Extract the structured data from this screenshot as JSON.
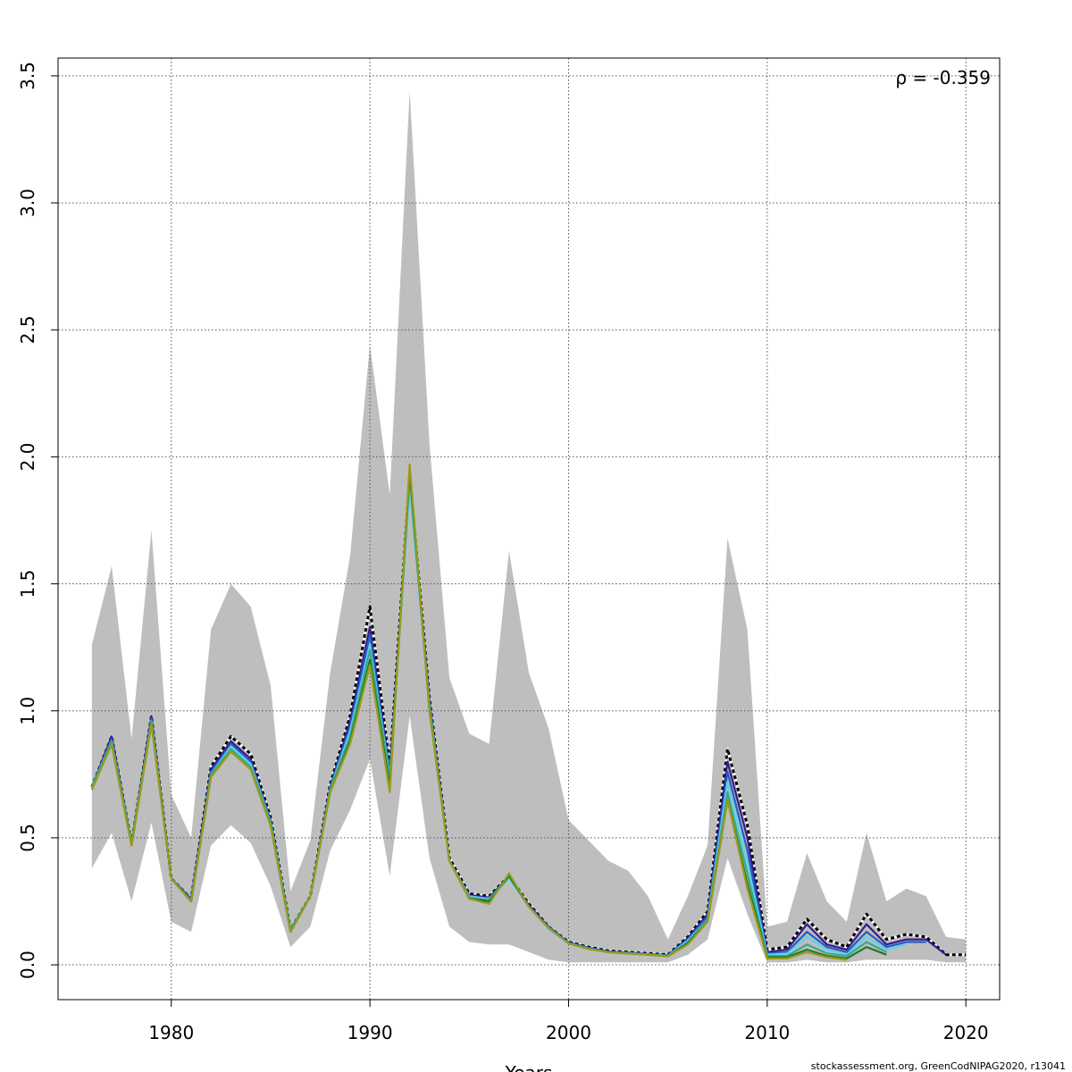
{
  "chart_data": {
    "type": "line",
    "title": "",
    "xlabel": "Years",
    "ylabel": "",
    "xlim": [
      1974.3,
      2021.7
    ],
    "ylim": [
      -0.137,
      3.57
    ],
    "xticks": [
      1980,
      1990,
      2000,
      2010,
      2020
    ],
    "yticks": [
      0.0,
      0.5,
      1.0,
      1.5,
      2.0,
      2.5,
      3.0,
      3.5
    ],
    "ytick_labels": [
      "0.0",
      "0.5",
      "1.0",
      "1.5",
      "2.0",
      "2.5",
      "3.0",
      "3.5"
    ],
    "grid": true,
    "annotation": "ρ = -0.359",
    "footer": "stockassessment.org, GreenCodNIPAG2020, r13041",
    "band_color": "#bebebe",
    "band": {
      "x": [
        1976,
        1977,
        1978,
        1979,
        1980,
        1981,
        1982,
        1983,
        1984,
        1985,
        1986,
        1987,
        1988,
        1989,
        1990,
        1991,
        1992,
        1993,
        1994,
        1995,
        1996,
        1997,
        1998,
        1999,
        2000,
        2001,
        2002,
        2003,
        2004,
        2005,
        2006,
        2007,
        2008,
        2009,
        2010,
        2011,
        2012,
        2013,
        2014,
        2015,
        2016,
        2017,
        2018,
        2019,
        2020
      ],
      "upper": [
        1.26,
        1.57,
        0.89,
        1.71,
        0.67,
        0.5,
        1.32,
        1.5,
        1.41,
        1.1,
        0.29,
        0.49,
        1.15,
        1.61,
        2.44,
        1.85,
        3.44,
        2.05,
        1.13,
        0.91,
        0.87,
        1.63,
        1.15,
        0.93,
        0.57,
        0.49,
        0.41,
        0.37,
        0.27,
        0.1,
        0.27,
        0.47,
        1.68,
        1.32,
        0.15,
        0.17,
        0.44,
        0.25,
        0.17,
        0.52,
        0.25,
        0.3,
        0.27,
        0.11,
        0.1
      ],
      "lower": [
        0.38,
        0.52,
        0.25,
        0.56,
        0.17,
        0.13,
        0.47,
        0.55,
        0.48,
        0.31,
        0.07,
        0.15,
        0.45,
        0.61,
        0.81,
        0.35,
        0.98,
        0.42,
        0.15,
        0.09,
        0.08,
        0.08,
        0.05,
        0.02,
        0.01,
        0.01,
        0.01,
        0.01,
        0.01,
        0.01,
        0.04,
        0.1,
        0.42,
        0.2,
        0.01,
        0.01,
        0.02,
        0.01,
        0.01,
        0.02,
        0.02,
        0.02,
        0.02,
        0.01,
        0.01
      ]
    },
    "series": [
      {
        "color": "#000000",
        "dashed": true,
        "x": [
          1976,
          1977,
          1978,
          1979,
          1980,
          1981,
          1982,
          1983,
          1984,
          1985,
          1986,
          1987,
          1988,
          1989,
          1990,
          1991,
          1992,
          1993,
          1994,
          1995,
          1996,
          1997,
          1998,
          1999,
          2000,
          2001,
          2002,
          2003,
          2004,
          2005,
          2006,
          2007,
          2008,
          2009,
          2010,
          2011,
          2012,
          2013,
          2014,
          2015,
          2016,
          2017,
          2018,
          2019,
          2020
        ],
        "values": [
          0.7,
          0.9,
          0.48,
          0.98,
          0.34,
          0.26,
          0.78,
          0.9,
          0.83,
          0.58,
          0.14,
          0.27,
          0.71,
          0.98,
          1.41,
          0.78,
          1.93,
          1.05,
          0.42,
          0.28,
          0.27,
          0.35,
          0.24,
          0.15,
          0.09,
          0.07,
          0.055,
          0.05,
          0.045,
          0.04,
          0.11,
          0.21,
          0.85,
          0.55,
          0.06,
          0.07,
          0.18,
          0.1,
          0.07,
          0.2,
          0.1,
          0.12,
          0.11,
          0.04,
          0.04
        ]
      },
      {
        "color": "#3b1a8c",
        "dashed": false,
        "x": [
          1976,
          1977,
          1978,
          1979,
          1980,
          1981,
          1982,
          1983,
          1984,
          1985,
          1986,
          1987,
          1988,
          1989,
          1990,
          1991,
          1992,
          1993,
          1994,
          1995,
          1996,
          1997,
          1998,
          1999,
          2000,
          2001,
          2002,
          2003,
          2004,
          2005,
          2006,
          2007,
          2008,
          2009,
          2010,
          2011,
          2012,
          2013,
          2014,
          2015,
          2016,
          2017,
          2018,
          2019
        ],
        "values": [
          0.7,
          0.9,
          0.48,
          0.98,
          0.34,
          0.26,
          0.77,
          0.88,
          0.81,
          0.57,
          0.14,
          0.27,
          0.7,
          0.96,
          1.33,
          0.76,
          1.92,
          1.04,
          0.41,
          0.275,
          0.265,
          0.35,
          0.235,
          0.15,
          0.088,
          0.068,
          0.053,
          0.048,
          0.043,
          0.038,
          0.105,
          0.2,
          0.8,
          0.5,
          0.05,
          0.06,
          0.16,
          0.08,
          0.06,
          0.16,
          0.08,
          0.1,
          0.1,
          0.04
        ]
      },
      {
        "color": "#1f5fc8",
        "dashed": false,
        "x": [
          1976,
          1977,
          1978,
          1979,
          1980,
          1981,
          1982,
          1983,
          1984,
          1985,
          1986,
          1987,
          1988,
          1989,
          1990,
          1991,
          1992,
          1993,
          1994,
          1995,
          1996,
          1997,
          1998,
          1999,
          2000,
          2001,
          2002,
          2003,
          2004,
          2005,
          2006,
          2007,
          2008,
          2009,
          2010,
          2011,
          2012,
          2013,
          2014,
          2015,
          2016,
          2017,
          2018
        ],
        "values": [
          0.7,
          0.89,
          0.48,
          0.97,
          0.34,
          0.26,
          0.76,
          0.87,
          0.8,
          0.57,
          0.14,
          0.27,
          0.7,
          0.94,
          1.3,
          0.75,
          1.9,
          1.03,
          0.41,
          0.27,
          0.26,
          0.35,
          0.23,
          0.15,
          0.087,
          0.067,
          0.052,
          0.047,
          0.042,
          0.037,
          0.1,
          0.19,
          0.76,
          0.45,
          0.045,
          0.05,
          0.13,
          0.07,
          0.05,
          0.13,
          0.07,
          0.09,
          0.09
        ]
      },
      {
        "color": "#5fd3e6",
        "dashed": false,
        "x": [
          1976,
          1977,
          1978,
          1979,
          1980,
          1981,
          1982,
          1983,
          1984,
          1985,
          1986,
          1987,
          1988,
          1989,
          1990,
          1991,
          1992,
          1993,
          1994,
          1995,
          1996,
          1997,
          1998,
          1999,
          2000,
          2001,
          2002,
          2003,
          2004,
          2005,
          2006,
          2007,
          2008,
          2009,
          2010,
          2011,
          2012,
          2013,
          2014,
          2015,
          2016,
          2017
        ],
        "values": [
          0.7,
          0.88,
          0.48,
          0.96,
          0.34,
          0.25,
          0.75,
          0.86,
          0.79,
          0.56,
          0.14,
          0.27,
          0.69,
          0.92,
          1.26,
          0.74,
          1.88,
          1.02,
          0.41,
          0.27,
          0.26,
          0.34,
          0.23,
          0.14,
          0.085,
          0.065,
          0.05,
          0.046,
          0.041,
          0.036,
          0.095,
          0.18,
          0.72,
          0.4,
          0.04,
          0.045,
          0.11,
          0.06,
          0.04,
          0.11,
          0.06,
          0.08
        ]
      },
      {
        "color": "#3aa88a",
        "dashed": false,
        "x": [
          1976,
          1977,
          1978,
          1979,
          1980,
          1981,
          1982,
          1983,
          1984,
          1985,
          1986,
          1987,
          1988,
          1989,
          1990,
          1991,
          1992,
          1993,
          1994,
          1995,
          1996,
          1997,
          1998,
          1999,
          2000,
          2001,
          2002,
          2003,
          2004,
          2005,
          2006,
          2007,
          2008,
          2009,
          2010,
          2011,
          2012,
          2013,
          2014,
          2015,
          2016
        ],
        "values": [
          0.7,
          0.88,
          0.48,
          0.96,
          0.34,
          0.25,
          0.75,
          0.85,
          0.78,
          0.56,
          0.14,
          0.27,
          0.69,
          0.9,
          1.24,
          0.73,
          1.92,
          1.02,
          0.41,
          0.265,
          0.255,
          0.35,
          0.23,
          0.145,
          0.085,
          0.064,
          0.05,
          0.045,
          0.04,
          0.035,
          0.09,
          0.18,
          0.68,
          0.36,
          0.035,
          0.035,
          0.08,
          0.045,
          0.035,
          0.09,
          0.05
        ]
      },
      {
        "color": "#1e7a24",
        "dashed": false,
        "x": [
          1976,
          1977,
          1978,
          1979,
          1980,
          1981,
          1982,
          1983,
          1984,
          1985,
          1986,
          1987,
          1988,
          1989,
          1990,
          1991,
          1992,
          1993,
          1994,
          1995,
          1996,
          1997,
          1998,
          1999,
          2000,
          2001,
          2002,
          2003,
          2004,
          2005,
          2006,
          2007,
          2008,
          2009,
          2010,
          2011,
          2012,
          2013,
          2014,
          2015,
          2016
        ],
        "values": [
          0.69,
          0.87,
          0.47,
          0.95,
          0.34,
          0.25,
          0.74,
          0.84,
          0.77,
          0.55,
          0.13,
          0.27,
          0.68,
          0.88,
          1.2,
          0.7,
          1.95,
          1.0,
          0.41,
          0.26,
          0.25,
          0.35,
          0.23,
          0.145,
          0.085,
          0.063,
          0.05,
          0.045,
          0.04,
          0.034,
          0.085,
          0.17,
          0.65,
          0.32,
          0.03,
          0.03,
          0.06,
          0.035,
          0.025,
          0.07,
          0.04
        ]
      },
      {
        "color": "#9a9a1c",
        "dashed": false,
        "x": [
          1976,
          1977,
          1978,
          1979,
          1980,
          1981,
          1982,
          1983,
          1984,
          1985,
          1986,
          1987,
          1988,
          1989,
          1990,
          1991,
          1992,
          1993,
          1994,
          1995,
          1996,
          1997,
          1998,
          1999,
          2000,
          2001,
          2002,
          2003,
          2004,
          2005,
          2006,
          2007,
          2008,
          2009,
          2010,
          2011,
          2012,
          2013,
          2014
        ],
        "values": [
          0.69,
          0.87,
          0.47,
          0.95,
          0.34,
          0.25,
          0.74,
          0.84,
          0.77,
          0.55,
          0.13,
          0.27,
          0.68,
          0.87,
          1.18,
          0.68,
          1.97,
          1.0,
          0.41,
          0.26,
          0.24,
          0.36,
          0.23,
          0.145,
          0.085,
          0.062,
          0.05,
          0.044,
          0.04,
          0.034,
          0.08,
          0.17,
          0.65,
          0.3,
          0.025,
          0.025,
          0.05,
          0.03,
          0.02
        ]
      }
    ]
  }
}
